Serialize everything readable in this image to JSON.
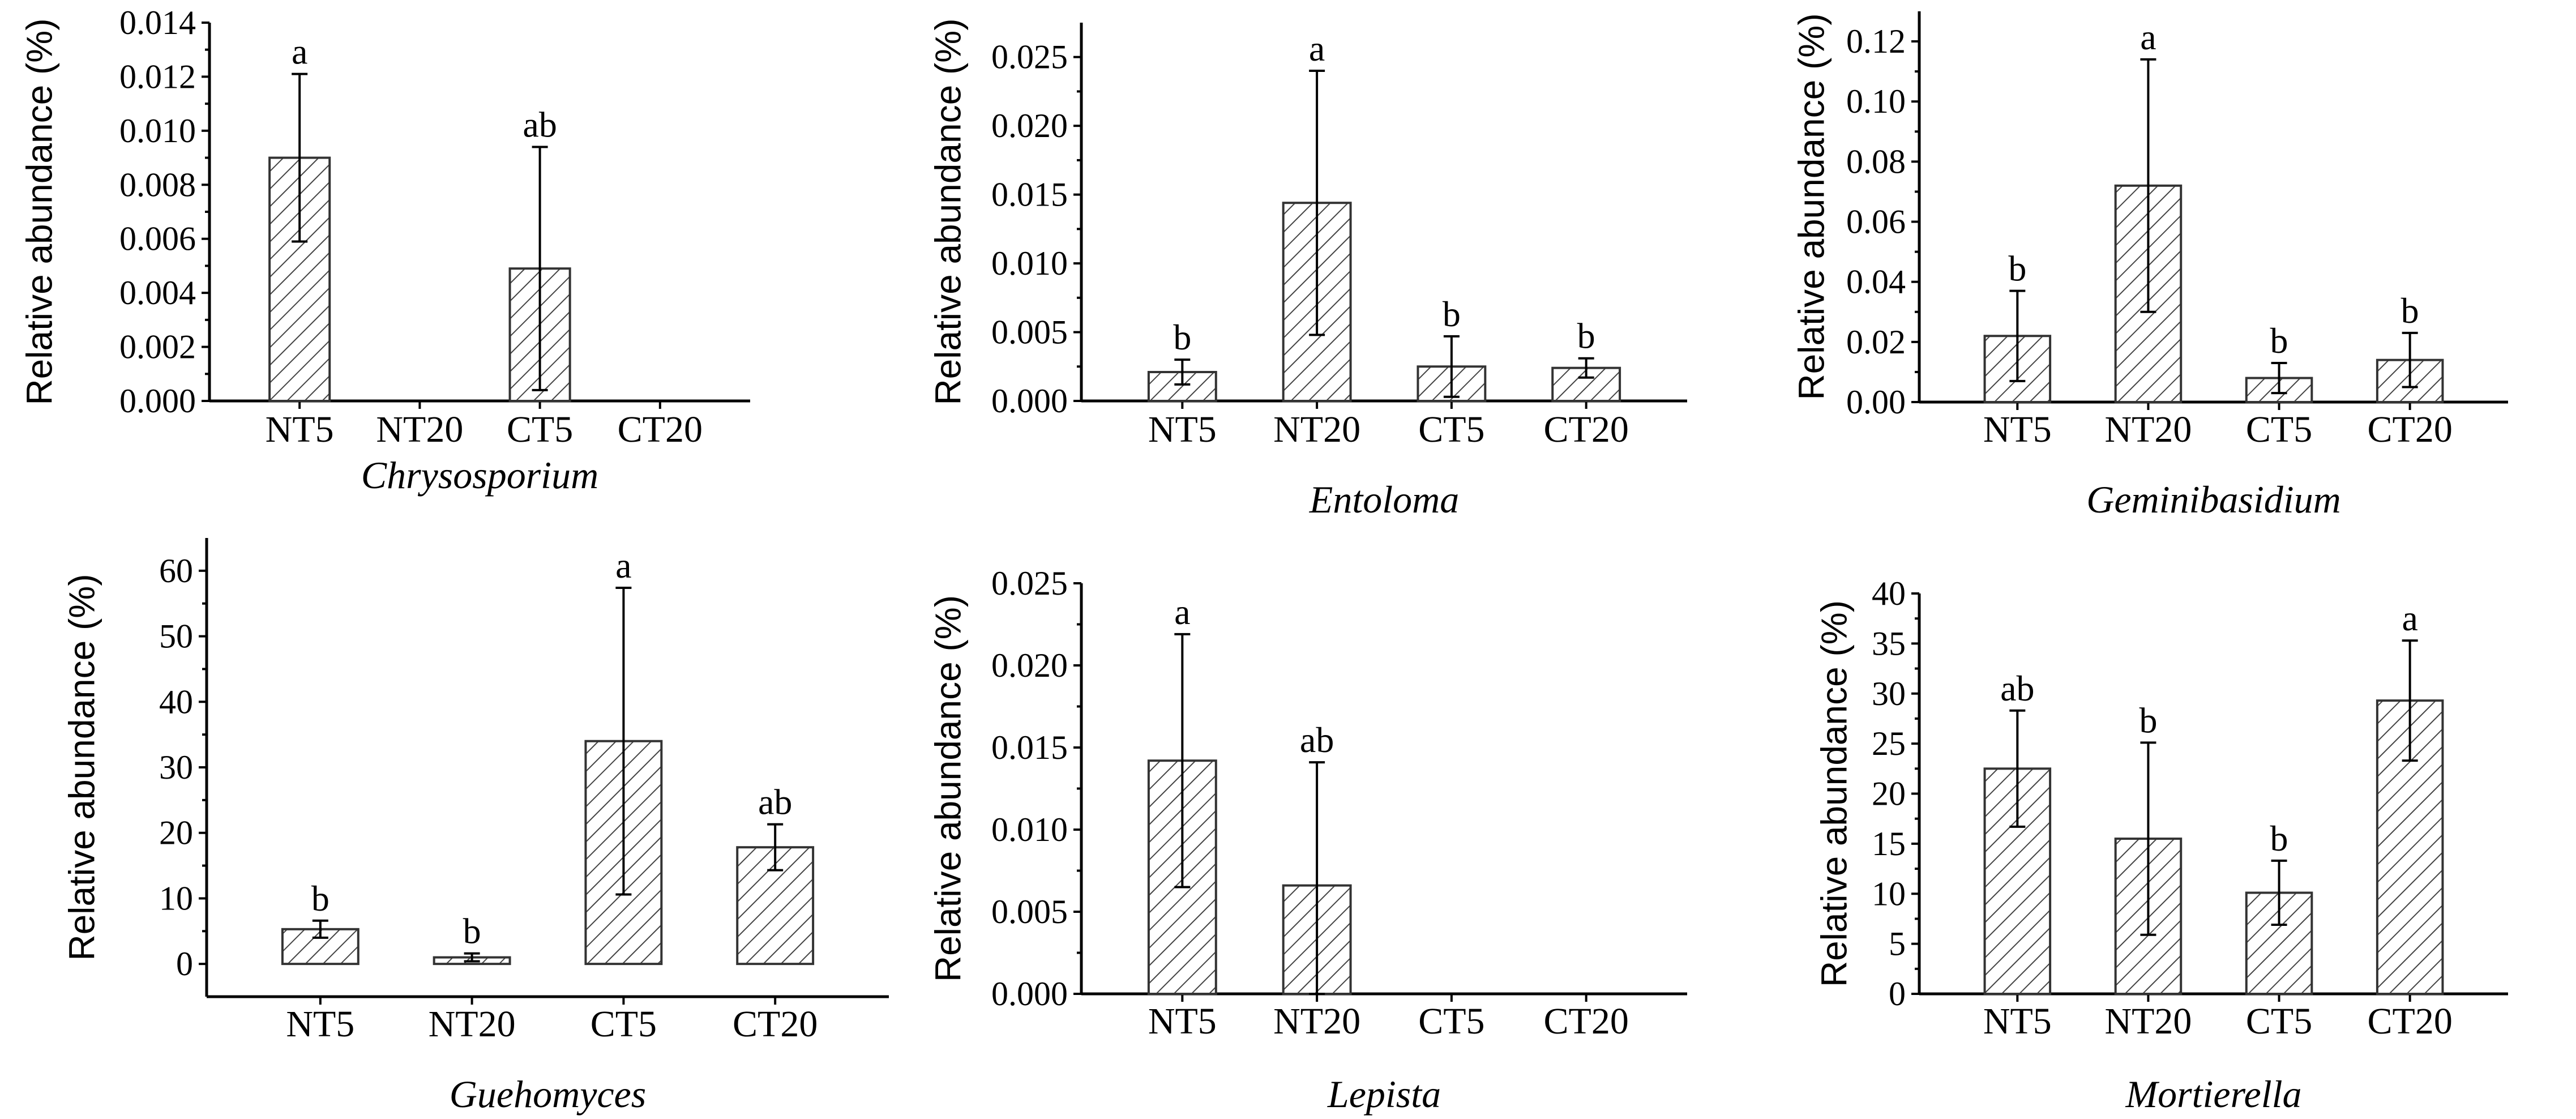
{
  "figure": {
    "ylabel": "Relative abundance (%)",
    "hatch_color": "#444444",
    "bar_fill": "#ffffff"
  },
  "chart_data": [
    {
      "type": "bar",
      "title": "Chrysosporium",
      "ylabel": "Relative abundance (%)",
      "categories": [
        "NT5",
        "NT20",
        "CT5",
        "CT20"
      ],
      "values": [
        0.009,
        0,
        0.0049,
        0
      ],
      "errors": [
        0.0031,
        0,
        0.0045,
        0
      ],
      "significance": [
        "a",
        "",
        "ab",
        ""
      ],
      "ylim": [
        0,
        0.014
      ],
      "yticks": [
        0,
        0.002,
        0.004,
        0.006,
        0.008,
        0.01,
        0.012,
        0.014
      ],
      "ytick_labels": [
        "0.000",
        "0.002",
        "0.004",
        "0.006",
        "0.008",
        "0.010",
        "0.012",
        "0.014"
      ]
    },
    {
      "type": "bar",
      "title": "Entoloma",
      "ylabel": "Relative abundance (%)",
      "categories": [
        "NT5",
        "NT20",
        "CT5",
        "CT20"
      ],
      "values": [
        0.0021,
        0.0144,
        0.0025,
        0.0024
      ],
      "errors": [
        0.0009,
        0.0096,
        0.0022,
        0.0007
      ],
      "significance": [
        "b",
        "a",
        "b",
        "b"
      ],
      "ylim": [
        0,
        0.0275
      ],
      "yticks": [
        0,
        0.005,
        0.01,
        0.015,
        0.02,
        0.025
      ],
      "ytick_labels": [
        "0.000",
        "0.005",
        "0.010",
        "0.015",
        "0.020",
        "0.025"
      ]
    },
    {
      "type": "bar",
      "title": "Geminibasidium",
      "ylabel": "Relative abundance (%)",
      "categories": [
        "NT5",
        "NT20",
        "CT5",
        "CT20"
      ],
      "values": [
        0.022,
        0.072,
        0.008,
        0.014
      ],
      "errors": [
        0.015,
        0.042,
        0.005,
        0.009
      ],
      "significance": [
        "b",
        "a",
        "b",
        "b"
      ],
      "ylim": [
        0,
        0.13
      ],
      "yticks": [
        0,
        0.02,
        0.04,
        0.06,
        0.08,
        0.1,
        0.12
      ],
      "ytick_labels": [
        "0.00",
        "0.02",
        "0.04",
        "0.06",
        "0.08",
        "0.10",
        "0.12"
      ]
    },
    {
      "type": "bar",
      "title": "Guehomyces",
      "ylabel": "Relative abundance (%)",
      "categories": [
        "NT5",
        "NT20",
        "CT5",
        "CT20"
      ],
      "values": [
        5.3,
        1.0,
        34.0,
        17.8
      ],
      "errors": [
        1.3,
        0.6,
        23.4,
        3.5
      ],
      "significance": [
        "b",
        "b",
        "a",
        "ab"
      ],
      "ylim": [
        -5,
        65
      ],
      "yticks": [
        0,
        10,
        20,
        30,
        40,
        50,
        60
      ],
      "ytick_labels": [
        "0",
        "10",
        "20",
        "30",
        "40",
        "50",
        "60"
      ]
    },
    {
      "type": "bar",
      "title": "Lepista",
      "ylabel": "Relative abundance (%)",
      "categories": [
        "NT5",
        "NT20",
        "CT5",
        "CT20"
      ],
      "values": [
        0.0142,
        0.0066,
        0,
        0
      ],
      "errors": [
        0.0077,
        0.0075,
        0,
        0
      ],
      "significance": [
        "a",
        "ab",
        "",
        ""
      ],
      "ylim": [
        0,
        0.025
      ],
      "yticks": [
        0,
        0.005,
        0.01,
        0.015,
        0.02,
        0.025
      ],
      "ytick_labels": [
        "0.000",
        "0.005",
        "0.010",
        "0.015",
        "0.020",
        "0.025"
      ]
    },
    {
      "type": "bar",
      "title": "Mortierella",
      "ylabel": "Relative abundance (%)",
      "categories": [
        "NT5",
        "NT20",
        "CT5",
        "CT20"
      ],
      "values": [
        22.5,
        15.5,
        10.1,
        29.3
      ],
      "errors": [
        5.8,
        9.6,
        3.2,
        6.0
      ],
      "significance": [
        "ab",
        "b",
        "b",
        "a"
      ],
      "ylim": [
        0,
        40
      ],
      "yticks": [
        0,
        5,
        10,
        15,
        20,
        25,
        30,
        35,
        40
      ],
      "ytick_labels": [
        "0",
        "5",
        "10",
        "15",
        "20",
        "25",
        "30",
        "35",
        "40"
      ]
    }
  ]
}
